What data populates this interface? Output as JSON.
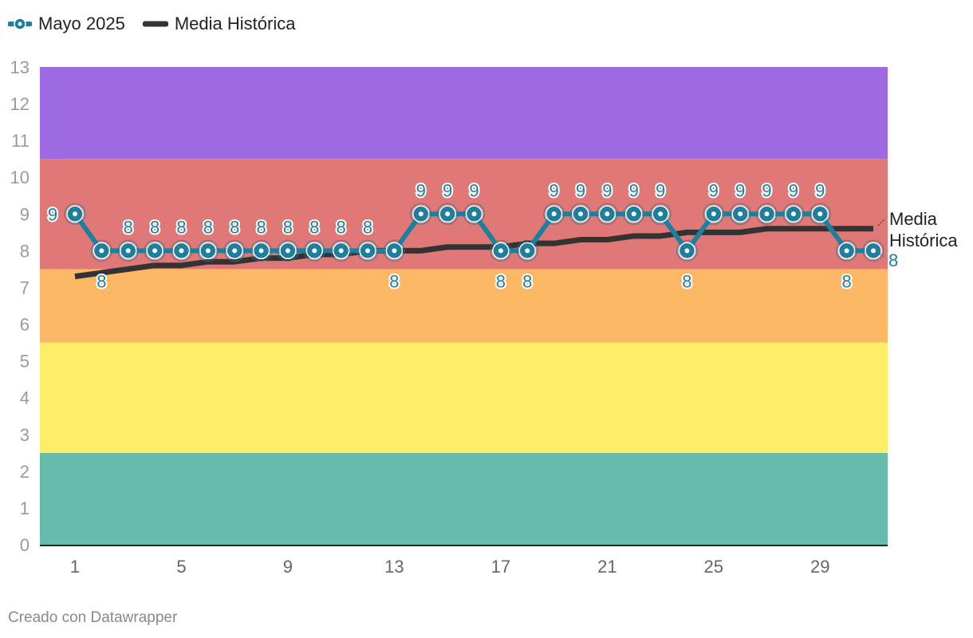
{
  "legend": {
    "items": [
      {
        "label": "Mayo 2025",
        "color": "#1d7f9e"
      },
      {
        "label": "Media Histórica",
        "color": "#333333"
      }
    ]
  },
  "credit": "Creado con Datawrapper",
  "chart_data": {
    "type": "line",
    "title": "",
    "xlabel": "",
    "ylabel": "",
    "xlim": [
      1,
      31
    ],
    "ylim": [
      0,
      13
    ],
    "x_ticks": [
      "1",
      "5",
      "9",
      "13",
      "17",
      "21",
      "25",
      "29"
    ],
    "y_ticks": [
      "0",
      "1",
      "2",
      "3",
      "4",
      "5",
      "6",
      "7",
      "8",
      "9",
      "10",
      "11",
      "12",
      "13"
    ],
    "bands": [
      {
        "from": 0,
        "to": 2.5,
        "color": "#65bcad"
      },
      {
        "from": 2.5,
        "to": 5.5,
        "color": "#feed66"
      },
      {
        "from": 5.5,
        "to": 7.5,
        "color": "#fdb866"
      },
      {
        "from": 7.5,
        "to": 10.5,
        "color": "#df7876"
      },
      {
        "from": 10.5,
        "to": 13,
        "color": "#9d6ae1"
      }
    ],
    "x": [
      1,
      2,
      3,
      4,
      5,
      6,
      7,
      8,
      9,
      10,
      11,
      12,
      13,
      14,
      15,
      16,
      17,
      18,
      19,
      20,
      21,
      22,
      23,
      24,
      25,
      26,
      27,
      28,
      29,
      30,
      31
    ],
    "series": [
      {
        "name": "Mayo 2025",
        "color": "#1d7f9e",
        "values": [
          9,
          8,
          8,
          8,
          8,
          8,
          8,
          8,
          8,
          8,
          8,
          8,
          8,
          9,
          9,
          9,
          8,
          8,
          9,
          9,
          9,
          9,
          9,
          8,
          9,
          9,
          9,
          9,
          9,
          8,
          8
        ],
        "labels": [
          "9",
          "8",
          "8",
          "8",
          "8",
          "8",
          "8",
          "8",
          "8",
          "8",
          "8",
          "8",
          "8",
          "9",
          "9",
          "9",
          "8",
          "8",
          "9",
          "9",
          "9",
          "9",
          "9",
          "8",
          "9",
          "9",
          "9",
          "9",
          "9",
          "8",
          "8"
        ]
      },
      {
        "name": "Media Histórica",
        "color": "#333333",
        "values": [
          7.3,
          7.4,
          7.5,
          7.6,
          7.6,
          7.7,
          7.7,
          7.8,
          7.8,
          7.9,
          7.9,
          8.0,
          8.0,
          8.0,
          8.1,
          8.1,
          8.1,
          8.2,
          8.2,
          8.3,
          8.3,
          8.4,
          8.4,
          8.5,
          8.5,
          8.5,
          8.6,
          8.6,
          8.6,
          8.6,
          8.6
        ]
      }
    ],
    "end_labels": {
      "media": [
        "Media",
        "Histórica"
      ],
      "mayo": "8"
    }
  }
}
